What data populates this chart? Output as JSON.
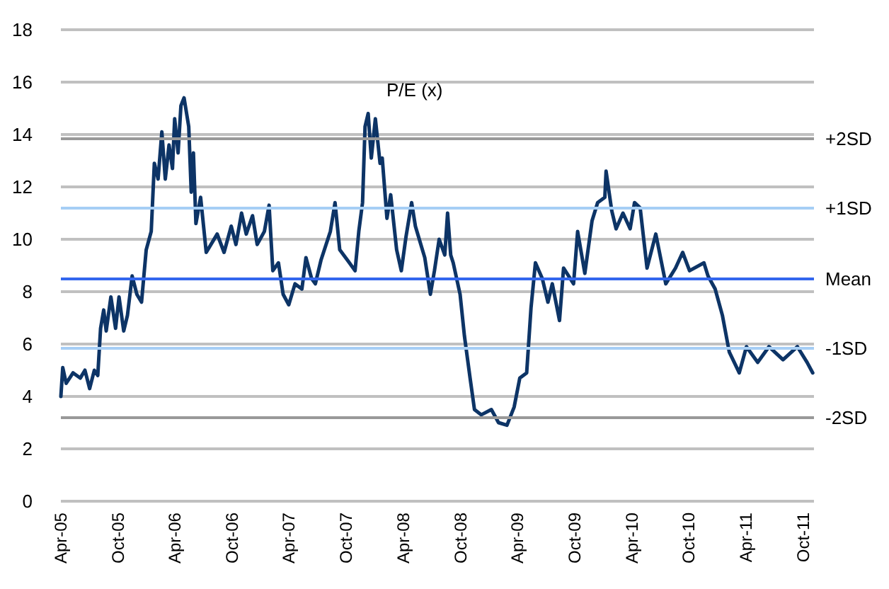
{
  "chart_data": {
    "type": "line",
    "title": "P/E (x)",
    "x": [
      "2005-04-01",
      "2005-04-07",
      "2005-04-18",
      "2005-05-10",
      "2005-06-02",
      "2005-06-17",
      "2005-07-02",
      "2005-07-17",
      "2005-07-28",
      "2005-08-06",
      "2005-08-16",
      "2005-08-24",
      "2005-09-08",
      "2005-09-23",
      "2005-10-04",
      "2005-10-19",
      "2005-10-31",
      "2005-11-15",
      "2005-11-30",
      "2005-12-15",
      "2005-12-30",
      "2006-01-15",
      "2006-01-25",
      "2006-02-06",
      "2006-02-18",
      "2006-03-01",
      "2006-03-13",
      "2006-03-24",
      "2006-03-31",
      "2006-04-11",
      "2006-04-20",
      "2006-04-30",
      "2006-05-15",
      "2006-05-23",
      "2006-05-30",
      "2006-06-07",
      "2006-06-22",
      "2006-07-10",
      "2006-08-14",
      "2006-09-05",
      "2006-09-28",
      "2006-10-13",
      "2006-10-31",
      "2006-11-15",
      "2006-12-05",
      "2006-12-20",
      "2007-01-12",
      "2007-01-27",
      "2007-02-08",
      "2007-02-26",
      "2007-03-13",
      "2007-03-31",
      "2007-04-20",
      "2007-05-12",
      "2007-05-25",
      "2007-06-12",
      "2007-06-24",
      "2007-07-12",
      "2007-08-11",
      "2007-08-26",
      "2007-09-10",
      "2007-10-11",
      "2007-10-29",
      "2007-11-10",
      "2007-11-22",
      "2007-11-30",
      "2007-12-10",
      "2007-12-20",
      "2008-01-02",
      "2008-01-17",
      "2008-01-24",
      "2008-02-08",
      "2008-02-20",
      "2008-03-10",
      "2008-03-25",
      "2008-04-09",
      "2008-04-27",
      "2008-05-09",
      "2008-05-24",
      "2008-06-08",
      "2008-06-26",
      "2008-07-09",
      "2008-07-24",
      "2008-08-11",
      "2008-08-20",
      "2008-08-30",
      "2008-09-07",
      "2008-09-29",
      "2008-10-13",
      "2008-10-31",
      "2008-11-14",
      "2008-12-06",
      "2009-01-07",
      "2009-01-30",
      "2009-02-26",
      "2009-03-21",
      "2009-04-08",
      "2009-04-30",
      "2009-05-14",
      "2009-05-28",
      "2009-06-19",
      "2009-07-07",
      "2009-07-21",
      "2009-08-13",
      "2009-08-26",
      "2009-09-27",
      "2009-10-10",
      "2009-11-02",
      "2009-11-25",
      "2009-12-13",
      "2010-01-05",
      "2010-01-09",
      "2010-01-27",
      "2010-02-10",
      "2010-03-04",
      "2010-03-27",
      "2010-04-10",
      "2010-04-28",
      "2010-05-20",
      "2010-06-17",
      "2010-07-19",
      "2010-08-19",
      "2010-09-11",
      "2010-10-03",
      "2010-11-18",
      "2010-12-01",
      "2010-12-24",
      "2011-01-16",
      "2011-02-07",
      "2011-03-11",
      "2011-04-03",
      "2011-05-09",
      "2011-06-14",
      "2011-07-29",
      "2011-09-13",
      "2011-10-14",
      "2011-11-01"
    ],
    "series": [
      {
        "color": "#0d3466",
        "values": [
          4.0,
          5.1,
          4.5,
          4.9,
          4.7,
          5.0,
          4.3,
          5.0,
          4.8,
          6.6,
          7.3,
          6.5,
          7.8,
          6.6,
          7.8,
          6.5,
          7.1,
          8.6,
          7.9,
          7.6,
          9.6,
          10.3,
          12.9,
          12.3,
          14.1,
          12.3,
          13.6,
          12.7,
          14.6,
          13.3,
          15.1,
          15.4,
          14.3,
          11.8,
          13.3,
          10.6,
          11.6,
          9.5,
          10.2,
          9.5,
          10.5,
          9.8,
          11.0,
          10.2,
          10.9,
          9.8,
          10.3,
          11.3,
          8.8,
          9.1,
          7.9,
          7.5,
          8.3,
          8.1,
          9.3,
          8.5,
          8.3,
          9.2,
          10.3,
          11.4,
          9.6,
          9.1,
          8.8,
          10.3,
          11.4,
          14.3,
          14.8,
          13.1,
          14.6,
          12.9,
          13.1,
          10.8,
          11.7,
          9.6,
          8.8,
          10.1,
          11.4,
          10.5,
          9.9,
          9.3,
          7.9,
          8.8,
          10.0,
          9.4,
          11.0,
          9.4,
          9.1,
          7.9,
          6.3,
          4.7,
          3.5,
          3.3,
          3.5,
          3.0,
          2.9,
          3.6,
          4.7,
          4.9,
          7.4,
          9.1,
          8.5,
          7.6,
          8.3,
          6.9,
          8.9,
          8.3,
          10.3,
          8.7,
          10.7,
          11.4,
          11.6,
          12.6,
          11.1,
          10.4,
          11.0,
          10.4,
          11.4,
          11.2,
          8.9,
          10.2,
          8.3,
          8.9,
          9.5,
          8.8,
          9.1,
          8.6,
          8.1,
          7.1,
          5.7,
          4.9,
          5.9,
          5.3,
          5.9,
          5.4,
          5.9,
          5.3,
          4.9
        ]
      }
    ],
    "xlim": [
      "2005-04-01",
      "2011-11-05"
    ],
    "xticks": [
      {
        "value": "2005-04-01",
        "label": "Apr-05"
      },
      {
        "value": "2005-10-01",
        "label": "Oct-05"
      },
      {
        "value": "2006-04-01",
        "label": "Apr-06"
      },
      {
        "value": "2006-10-01",
        "label": "Oct-06"
      },
      {
        "value": "2007-04-01",
        "label": "Apr-07"
      },
      {
        "value": "2007-10-01",
        "label": "Oct-07"
      },
      {
        "value": "2008-04-01",
        "label": "Apr-08"
      },
      {
        "value": "2008-10-01",
        "label": "Oct-08"
      },
      {
        "value": "2009-04-01",
        "label": "Apr-09"
      },
      {
        "value": "2009-10-01",
        "label": "Oct-09"
      },
      {
        "value": "2010-04-01",
        "label": "Apr-10"
      },
      {
        "value": "2010-10-01",
        "label": "Oct-10"
      },
      {
        "value": "2011-04-01",
        "label": "Apr-11"
      },
      {
        "value": "2011-10-01",
        "label": "Oct-11"
      }
    ],
    "ylim": [
      0,
      18
    ],
    "yticks": [
      0,
      2,
      4,
      6,
      8,
      10,
      12,
      14,
      16,
      18
    ],
    "grid": "y",
    "marker": "none",
    "line_style": "solid",
    "ref_lines": [
      {
        "axis": "y",
        "value": 13.84,
        "label": "+2SD",
        "color": "#999999"
      },
      {
        "axis": "y",
        "value": 11.19,
        "label": "+1SD",
        "color": "#a6cef5"
      },
      {
        "axis": "y",
        "value": 8.49,
        "label": "Mean",
        "color": "#3366ee"
      },
      {
        "axis": "y",
        "value": 5.84,
        "label": "-1SD",
        "color": "#a6cef5"
      },
      {
        "axis": "y",
        "value": 3.19,
        "label": "-2SD",
        "color": "#999999"
      }
    ]
  }
}
